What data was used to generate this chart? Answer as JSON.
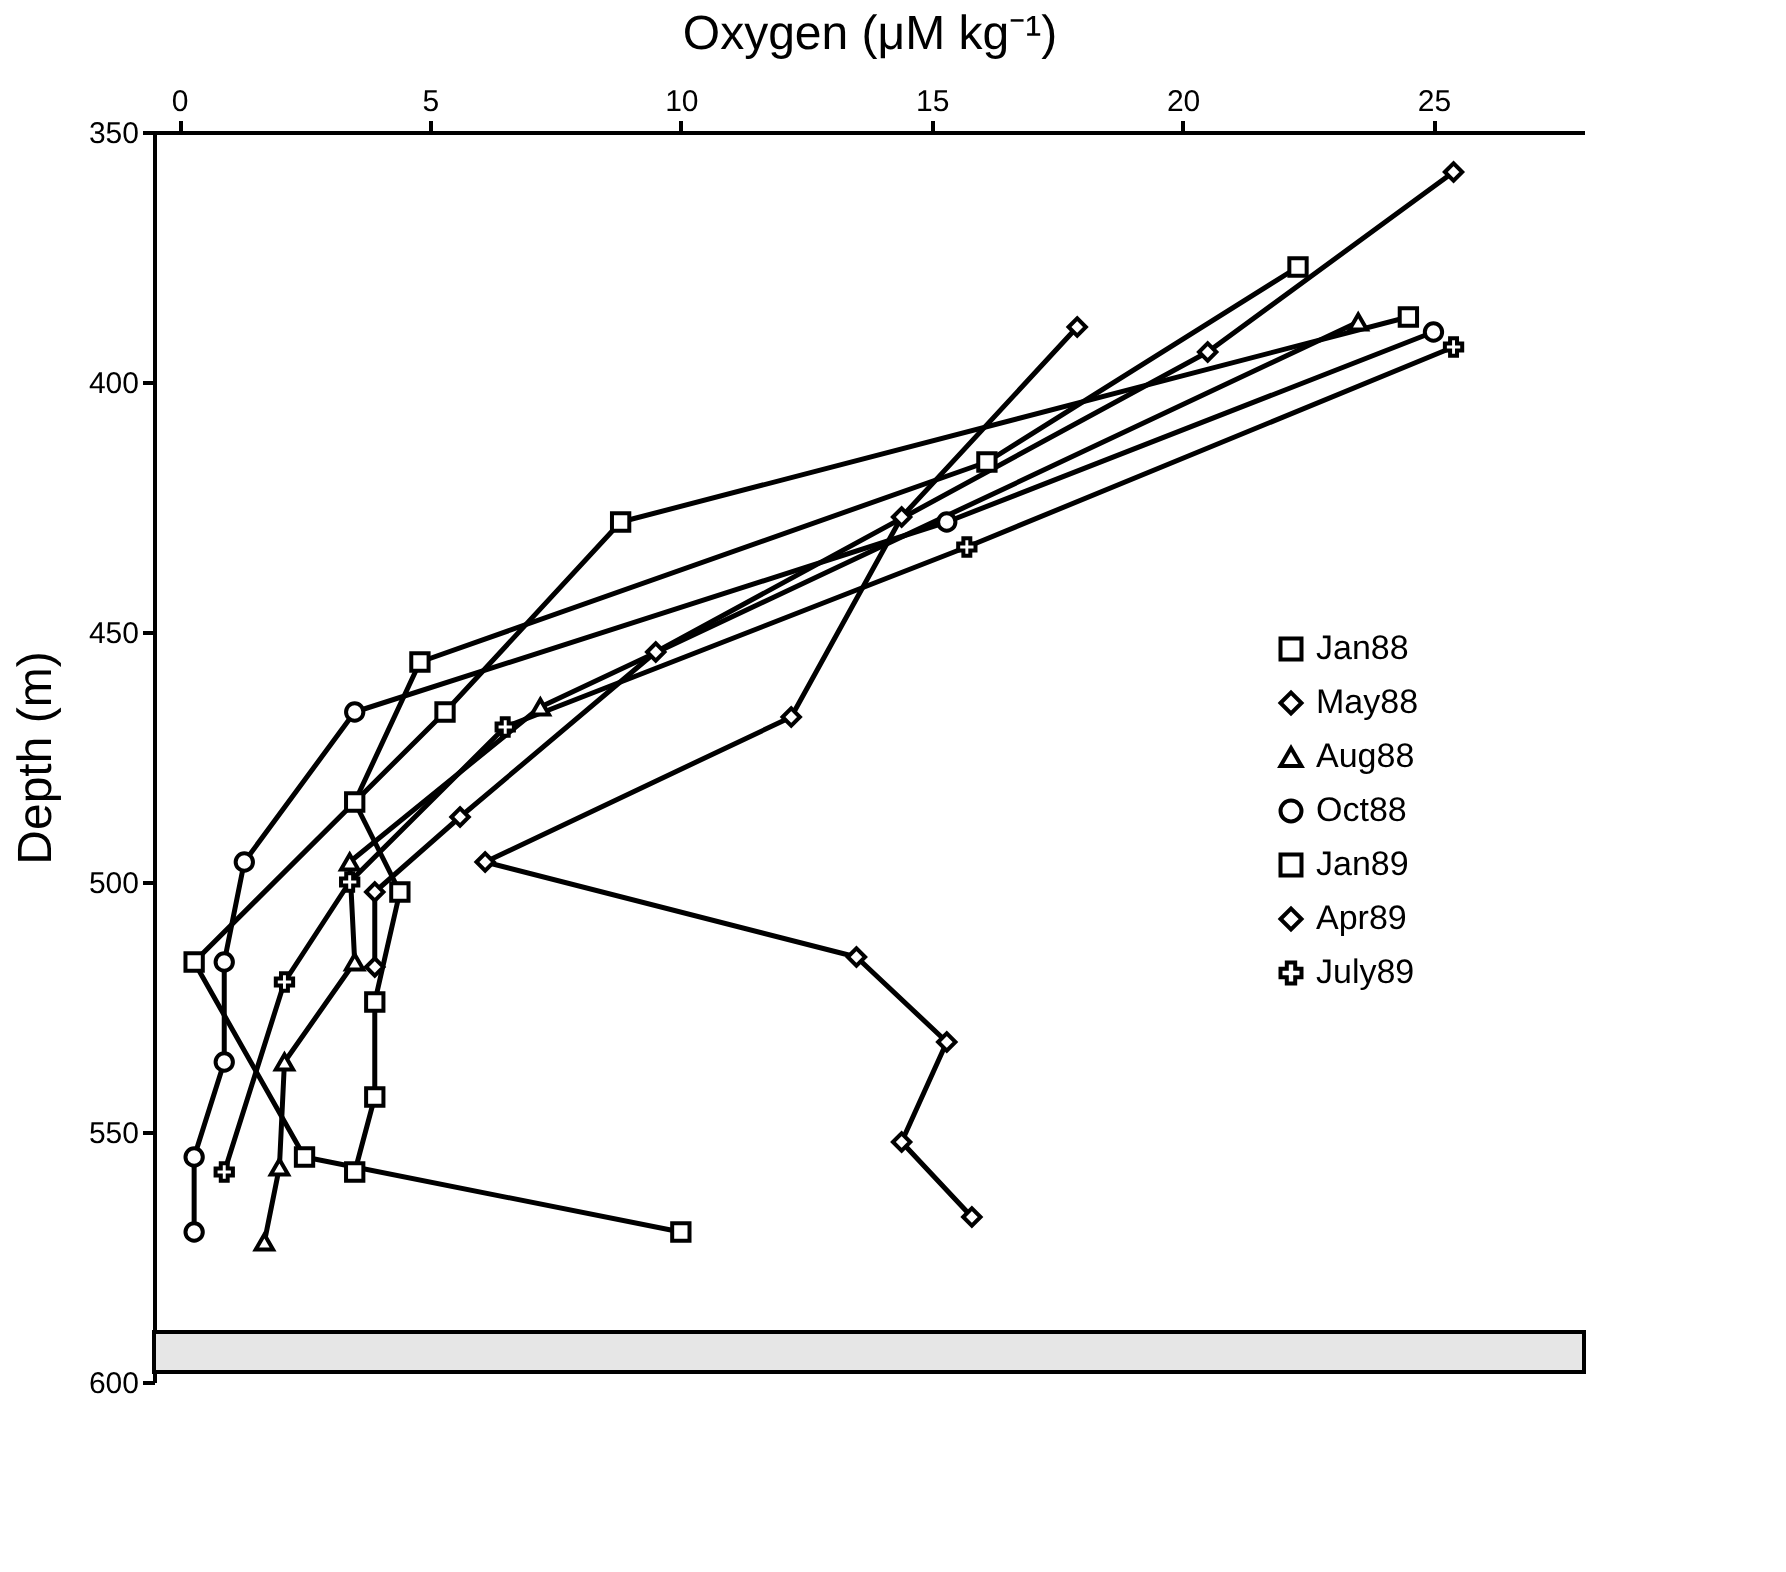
{
  "chart_data": {
    "type": "line",
    "xlabel": "Oxygen (μM kg⁻¹)",
    "ylabel": "Depth (m)",
    "xlim": [
      -0.5,
      28
    ],
    "xticks": [
      0,
      5,
      10,
      15,
      20,
      25
    ],
    "ylim": [
      600,
      350
    ],
    "yticks": [
      350,
      400,
      450,
      500,
      550,
      600
    ],
    "grid": false,
    "legend": "right",
    "line_style": "solid",
    "bands": [
      {
        "axis": "y",
        "from": 590,
        "to": 598,
        "color": "#e6e6e6"
      }
    ],
    "series": [
      {
        "name": "Jan88",
        "color": "#000000",
        "marker": "square",
        "x": [
          24.5,
          8.8,
          5.3,
          0.3,
          2.5,
          10.0
        ],
        "values": [
          387,
          428,
          466,
          516,
          555,
          570
        ]
      },
      {
        "name": "May88",
        "color": "#000000",
        "marker": "diamond",
        "x": [
          17.9,
          14.4,
          12.2,
          6.1,
          13.5,
          15.3,
          14.4,
          15.8
        ],
        "values": [
          389,
          427,
          467,
          496,
          515,
          532,
          552,
          567
        ]
      },
      {
        "name": "Aug88",
        "color": "#000000",
        "marker": "triangle",
        "x": [
          23.5,
          7.2,
          3.4,
          3.5,
          2.1,
          2.0,
          1.7
        ],
        "values": [
          388,
          465,
          496,
          516,
          536,
          557,
          572
        ]
      },
      {
        "name": "Oct88",
        "color": "#000000",
        "marker": "circle",
        "x": [
          25.0,
          15.3,
          3.5,
          1.3,
          0.9,
          0.9,
          0.3,
          0.3
        ],
        "values": [
          390,
          428,
          466,
          496,
          516,
          536,
          555,
          570
        ]
      },
      {
        "name": "Jan89",
        "color": "#000000",
        "marker": "square",
        "x": [
          22.3,
          16.1,
          4.8,
          3.5,
          4.4,
          3.9,
          3.9,
          3.5
        ],
        "values": [
          377,
          416,
          456,
          484,
          502,
          524,
          543,
          558
        ]
      },
      {
        "name": "Apr89",
        "color": "#000000",
        "marker": "diamond",
        "x": [
          25.4,
          20.5,
          9.5,
          5.6,
          3.9,
          3.9
        ],
        "values": [
          358,
          394,
          454,
          487,
          502,
          517
        ]
      },
      {
        "name": "July89",
        "color": "#000000",
        "marker": "cross",
        "x": [
          25.4,
          15.7,
          6.5,
          3.4,
          2.1,
          0.9
        ],
        "values": [
          393,
          433,
          469,
          500,
          520,
          558
        ]
      }
    ]
  }
}
